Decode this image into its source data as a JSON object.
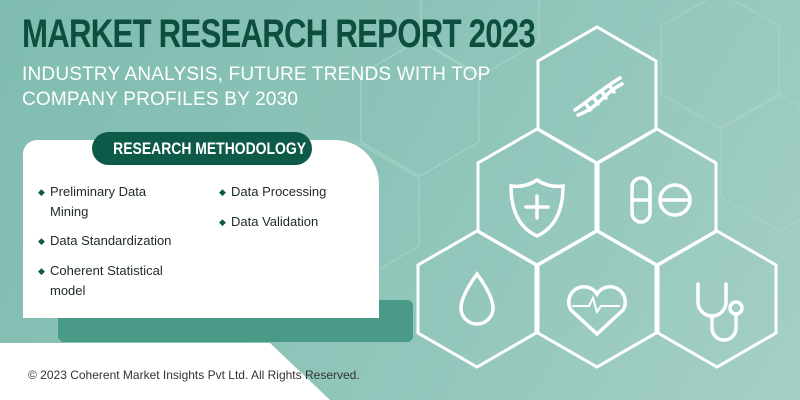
{
  "header": {
    "title": "MARKET RESEARCH REPORT 2023",
    "subtitle_line1": "INDUSTRY ANALYSIS, FUTURE TRENDS WITH TOP",
    "subtitle_line2": "COMPANY PROFILES BY 2030"
  },
  "methodology": {
    "heading": "RESEARCH METHODOLOGY",
    "items": [
      "Preliminary Data Mining",
      "Data Standardization",
      "Coherent Statistical model",
      "Data Processing",
      "Data Validation"
    ]
  },
  "icons": [
    "dna-icon",
    "shield-medical-cross-icon",
    "pill-capsule-icon",
    "blood-drop-icon",
    "heartbeat-icon",
    "stethoscope-icon"
  ],
  "colors": {
    "brand_dark": "#0d5a48",
    "background": "#8cc3b8"
  },
  "footer": {
    "copyright": "© 2023 Coherent Market Insights Pvt Ltd. All Rights Reserved."
  }
}
